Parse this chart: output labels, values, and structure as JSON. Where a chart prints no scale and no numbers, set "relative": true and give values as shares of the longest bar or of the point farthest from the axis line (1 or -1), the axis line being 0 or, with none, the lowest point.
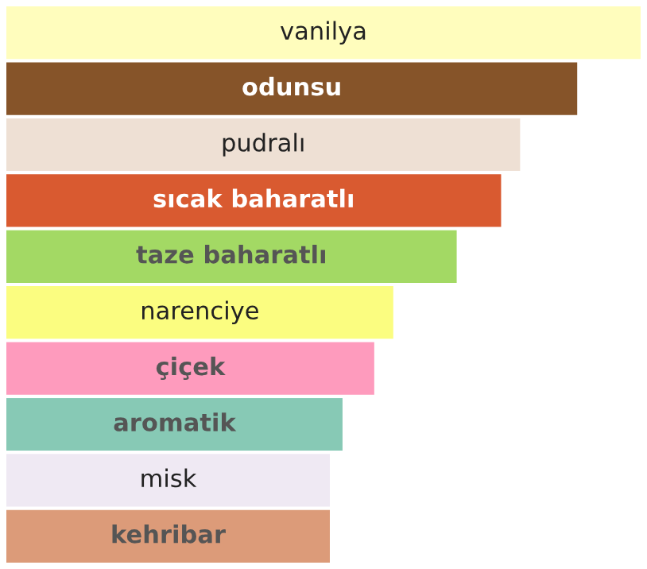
{
  "chart_data": {
    "type": "bar",
    "orientation": "horizontal",
    "relative": true,
    "categories": [
      "vanilya",
      "odunsu",
      "pudralı",
      "sıcak baharatlı",
      "taze baharatlı",
      "narenciye",
      "çiçek",
      "aromatik",
      "misk",
      "kehribar"
    ],
    "values": [
      1,
      0.9,
      0.81,
      0.78,
      0.71,
      0.61,
      0.58,
      0.53,
      0.51,
      0.51
    ],
    "colors": [
      "#fffdbd",
      "#865429",
      "#eee0d4",
      "#d95a30",
      "#a3d964",
      "#fbfd80",
      "#fe9bbd",
      "#87c9b5",
      "#efe9f3",
      "#dc9b79"
    ]
  }
}
